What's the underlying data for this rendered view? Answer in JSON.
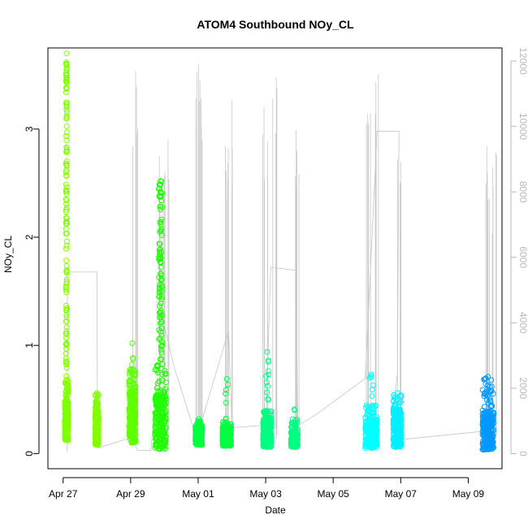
{
  "chart_data": {
    "type": "scatter",
    "title": "ATOM4 Southbound NOy_CL",
    "xlabel": "Date",
    "ylabel": "NOy_CL",
    "x_tick_labels": [
      "Apr 27",
      "Apr 29",
      "May 01",
      "May 03",
      "May 05",
      "May 07",
      "May 09"
    ],
    "x_tick_days": [
      0,
      2,
      4,
      6,
      8,
      10,
      12
    ],
    "xlim_days": [
      -0.45,
      13.0
    ],
    "ylim": [
      -0.14,
      3.75
    ],
    "y_ticks": [
      0,
      1,
      2,
      3
    ],
    "right_axis": {
      "ylim": [
        -460,
        12400
      ],
      "ticks": [
        0,
        2000,
        4000,
        6000,
        8000,
        10000,
        12000
      ],
      "color": "#b8b8b8"
    },
    "grid": false,
    "legend": "none",
    "flights": [
      {
        "start": 0.05,
        "end": 0.15,
        "low": 0.12,
        "median": 0.35,
        "high": 0.7,
        "spike_max": 3.7,
        "color": "#80ff00",
        "spike_pts": 120
      },
      {
        "start": 0.95,
        "end": 1.05,
        "low": 0.08,
        "median": 0.28,
        "high": 0.55,
        "spike_max": 0.56,
        "color": "#80ff00",
        "spike_pts": 0
      },
      {
        "start": 1.95,
        "end": 2.15,
        "low": 0.1,
        "median": 0.4,
        "high": 0.78,
        "spike_max": 1.02,
        "color": "#60ff00",
        "spike_pts": 3
      },
      {
        "start": 2.72,
        "end": 3.05,
        "low": 0.04,
        "median": 0.35,
        "high": 0.9,
        "spike_max": 2.52,
        "color": "#20ff00",
        "spike_pts": 90
      },
      {
        "start": 3.92,
        "end": 4.12,
        "low": 0.08,
        "median": 0.18,
        "high": 0.3,
        "spike_max": 0.32,
        "color": "#00ff40",
        "spike_pts": 0
      },
      {
        "start": 4.72,
        "end": 4.98,
        "low": 0.07,
        "median": 0.18,
        "high": 0.3,
        "spike_max": 0.69,
        "color": "#00ff40",
        "spike_pts": 6
      },
      {
        "start": 5.92,
        "end": 6.17,
        "low": 0.06,
        "median": 0.22,
        "high": 0.4,
        "spike_max": 0.94,
        "color": "#00ff80",
        "spike_pts": 10
      },
      {
        "start": 6.75,
        "end": 6.95,
        "low": 0.06,
        "median": 0.15,
        "high": 0.32,
        "spike_max": 0.41,
        "color": "#00ff80",
        "spike_pts": 1
      },
      {
        "start": 8.95,
        "end": 9.3,
        "low": 0.05,
        "median": 0.22,
        "high": 0.45,
        "spike_max": 0.73,
        "color": "#00ffff",
        "spike_pts": 6
      },
      {
        "start": 9.78,
        "end": 10.02,
        "low": 0.06,
        "median": 0.28,
        "high": 0.55,
        "spike_max": 0.56,
        "color": "#00f0ff",
        "spike_pts": 0
      },
      {
        "start": 12.42,
        "end": 12.75,
        "low": 0.03,
        "median": 0.25,
        "high": 0.7,
        "spike_max": 0.71,
        "color": "#0099ff",
        "spike_pts": 0
      }
    ],
    "altitude_trace": [
      [
        0.12,
        60
      ],
      [
        0.13,
        5550
      ],
      [
        1.0,
        5550
      ],
      [
        1.02,
        170
      ],
      [
        2.05,
        500
      ],
      [
        2.2,
        100
      ],
      [
        2.6,
        100
      ],
      [
        2.75,
        2000
      ],
      [
        3.0,
        3900
      ],
      [
        3.3,
        2600
      ],
      [
        3.95,
        480
      ],
      [
        4.05,
        800
      ],
      [
        4.9,
        3750
      ],
      [
        5.0,
        850
      ],
      [
        4.8,
        780
      ],
      [
        6.0,
        870
      ],
      [
        6.15,
        5700
      ],
      [
        6.9,
        5600
      ],
      [
        6.95,
        850
      ],
      [
        7.5,
        1200
      ],
      [
        8.95,
        2300
      ],
      [
        9.3,
        9850
      ],
      [
        9.95,
        9850
      ],
      [
        9.9,
        2450
      ],
      [
        9.7,
        400
      ],
      [
        12.6,
        700
      ]
    ],
    "altitude_peaks": [
      [
        2.12,
        11700
      ],
      [
        2.9,
        9100
      ],
      [
        3.05,
        9600
      ],
      [
        3.95,
        11900
      ],
      [
        4.1,
        11400
      ],
      [
        4.8,
        9400
      ],
      [
        4.95,
        10800
      ],
      [
        6.0,
        10600
      ],
      [
        6.3,
        11500
      ],
      [
        6.95,
        9900
      ],
      [
        9.05,
        10400
      ],
      [
        9.3,
        11600
      ],
      [
        9.95,
        9000
      ],
      [
        12.55,
        9400
      ],
      [
        12.75,
        9200
      ]
    ]
  }
}
